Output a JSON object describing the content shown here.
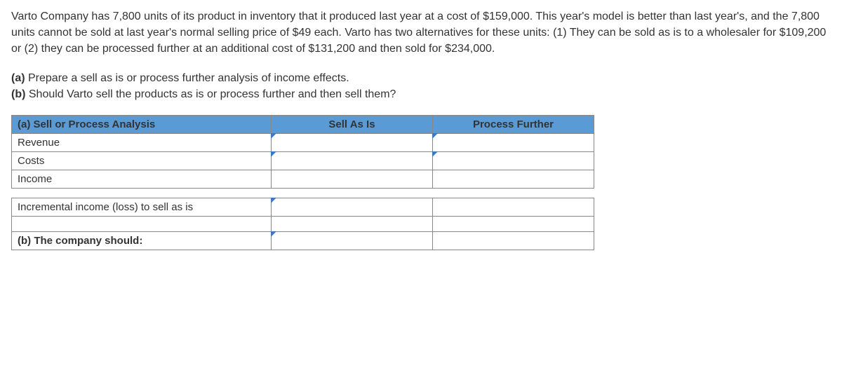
{
  "problem": {
    "paragraph": "Varto Company has 7,800 units of its product in inventory that it produced last year at a cost of $159,000. This year's model is better than last year's, and the 7,800 units cannot be sold at last year's normal selling price of $49 each. Varto has two alternatives for these units: (1) They can be sold as is to a wholesaler for $109,200 or (2) they can be processed further at an additional cost of $131,200 and then sold for $234,000."
  },
  "questions": {
    "a_label": "(a)",
    "a_text": " Prepare a sell as is or process further analysis of income effects.",
    "b_label": "(b)",
    "b_text": " Should Varto sell the products as is or process further and then sell them?"
  },
  "table": {
    "header_left": "(a) Sell or Process Analysis",
    "header_col1": "Sell As Is",
    "header_col2": "Process Further",
    "rows": {
      "revenue": "Revenue",
      "costs": "Costs",
      "income": "Income",
      "incremental": "Incremental income (loss) to sell as is",
      "decision": "(b) The company should:"
    }
  },
  "colors": {
    "header_bg": "#5a9bd5",
    "corner_marker": "#3a7bbf",
    "border": "#888"
  }
}
